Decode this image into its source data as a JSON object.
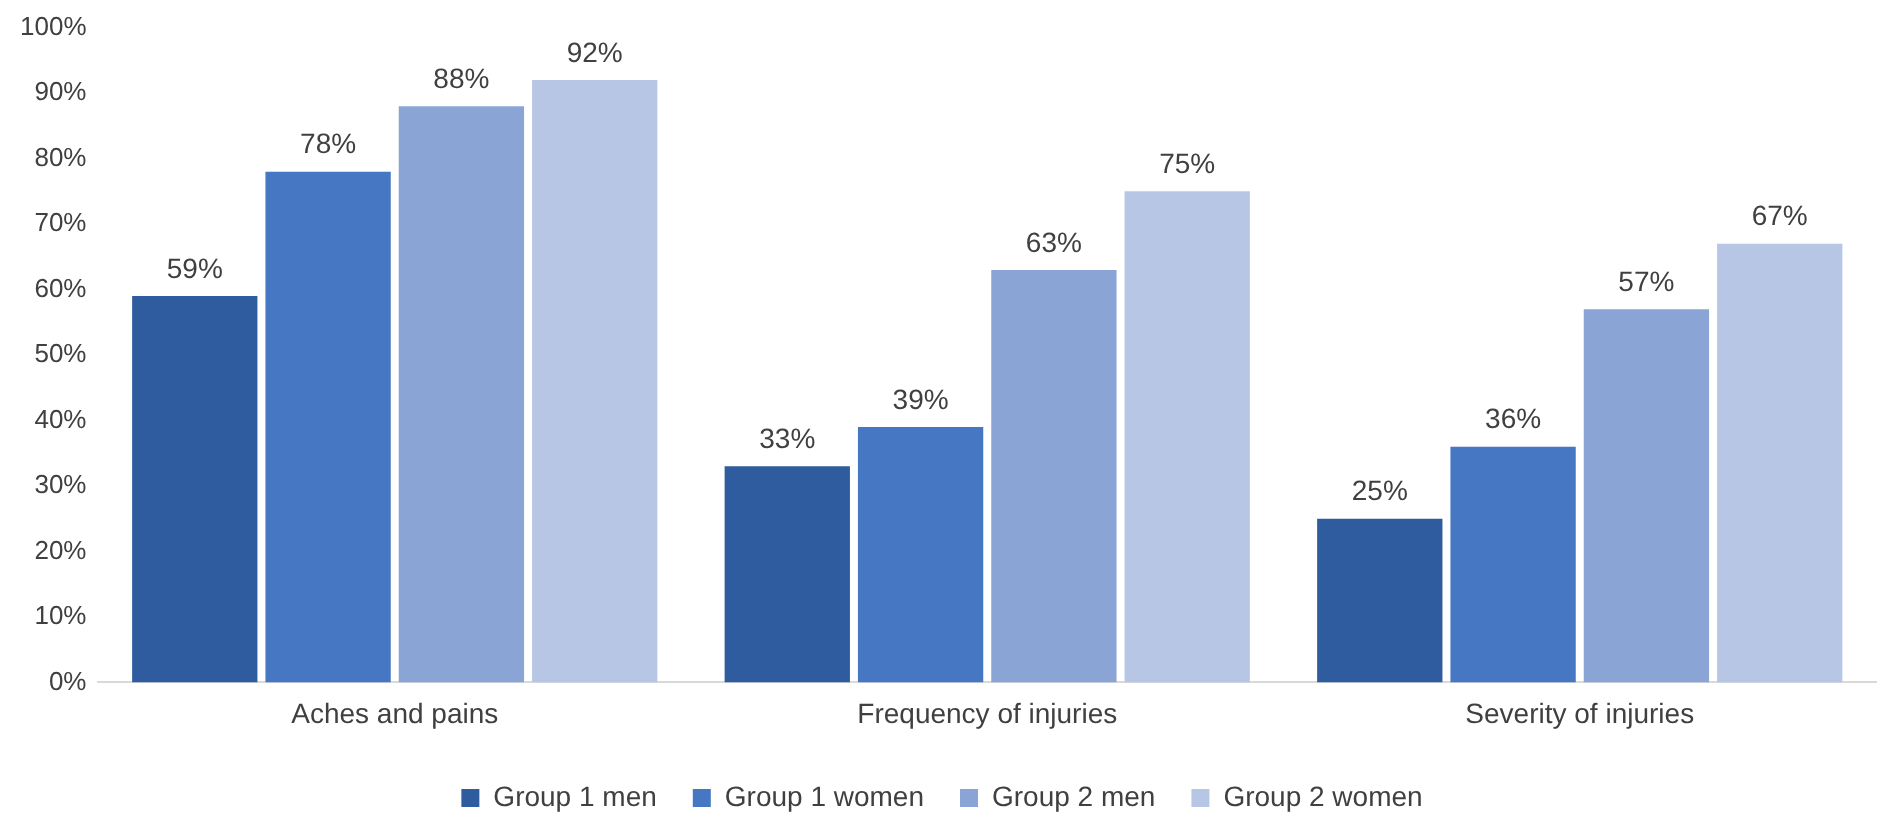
{
  "chart_data": {
    "type": "bar",
    "categories": [
      "Aches and pains",
      "Frequency of injuries",
      "Severity of injuries"
    ],
    "series": [
      {
        "name": "Group 1 men",
        "color": "#2f5c9e",
        "values": [
          59,
          33,
          25
        ],
        "value_labels": [
          "59%",
          "33%",
          "25%"
        ]
      },
      {
        "name": "Group 1 women",
        "color": "#4677c2",
        "values": [
          78,
          39,
          36
        ],
        "value_labels": [
          "78%",
          "39%",
          "36%"
        ]
      },
      {
        "name": "Group 2 men",
        "color": "#8ba4d6",
        "values": [
          88,
          63,
          57
        ],
        "value_labels": [
          "88%",
          "63%",
          "57%"
        ]
      },
      {
        "name": "Group 2 women",
        "color": "#b8c6e6",
        "values": [
          92,
          75,
          67
        ],
        "value_labels": [
          "92%",
          "75%",
          "67%"
        ]
      }
    ],
    "ylim": [
      0,
      100
    ],
    "yticks": [
      {
        "value": 0,
        "label": "0%"
      },
      {
        "value": 10,
        "label": "10%"
      },
      {
        "value": 20,
        "label": "20%"
      },
      {
        "value": 30,
        "label": "30%"
      },
      {
        "value": 40,
        "label": "40%"
      },
      {
        "value": 50,
        "label": "50%"
      },
      {
        "value": 60,
        "label": "60%"
      },
      {
        "value": 70,
        "label": "70%"
      },
      {
        "value": 80,
        "label": "80%"
      },
      {
        "value": 90,
        "label": "90%"
      },
      {
        "value": 100,
        "label": "100%"
      }
    ],
    "grid": false,
    "legend": "bottom"
  }
}
